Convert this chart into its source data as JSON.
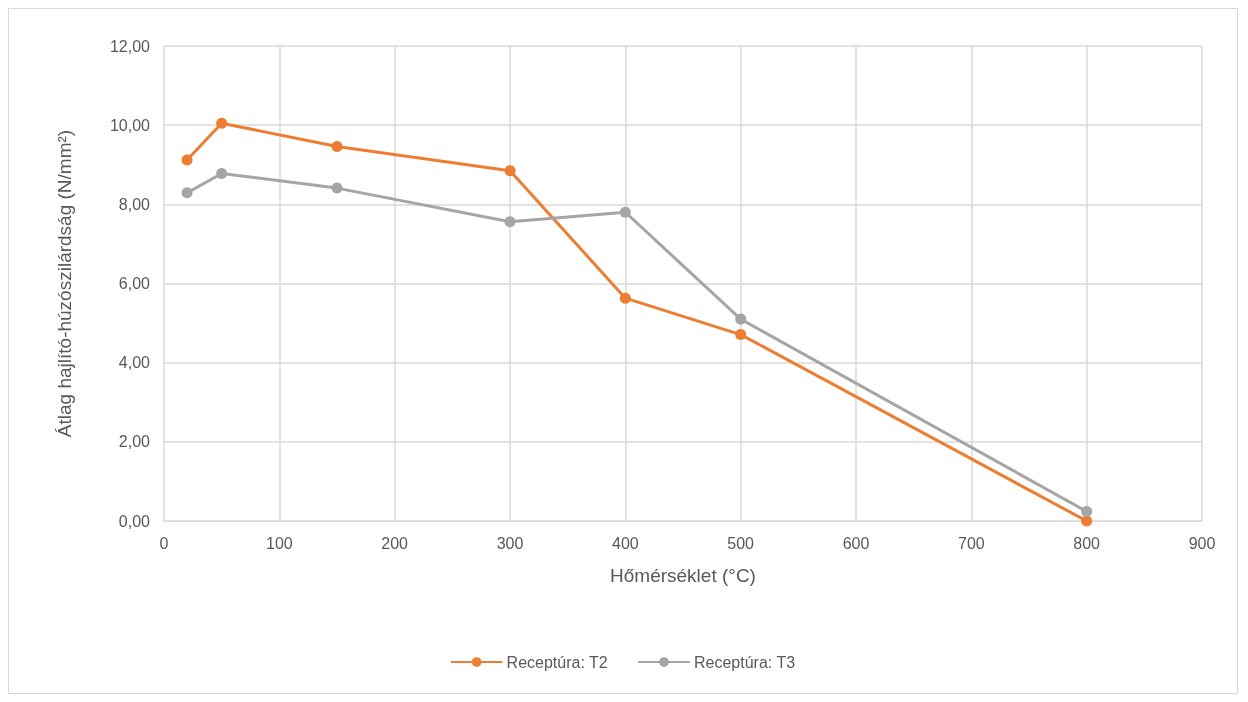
{
  "chart_data": {
    "type": "line",
    "xlabel": "Hőmérséklet (°C)",
    "ylabel": "Átlag hajlító-húzószilárdság (N/mm²)",
    "xlim": [
      0,
      900
    ],
    "xticks": [
      0,
      100,
      200,
      300,
      400,
      500,
      600,
      700,
      800,
      900
    ],
    "ylim": [
      0,
      12
    ],
    "yticks": [
      {
        "value": 0,
        "label": "0,00"
      },
      {
        "value": 2,
        "label": "2,00"
      },
      {
        "value": 4,
        "label": "4,00"
      },
      {
        "value": 6,
        "label": "6,00"
      },
      {
        "value": 8,
        "label": "8,00"
      },
      {
        "value": 10,
        "label": "10,00"
      },
      {
        "value": 12,
        "label": "12,00"
      }
    ],
    "x": [
      20,
      50,
      150,
      300,
      400,
      500,
      800
    ],
    "series": [
      {
        "name": "Receptúra: T2",
        "color": "#ed7d31",
        "values": [
          9.12,
          10.05,
          9.46,
          8.85,
          5.63,
          4.71,
          0
        ]
      },
      {
        "name": "Receptúra: T3",
        "color": "#a5a5a5",
        "values": [
          8.29,
          8.78,
          8.41,
          7.56,
          7.8,
          5.1,
          0.24
        ]
      }
    ],
    "grid": true,
    "legend": "bottom",
    "marker": "circle",
    "line_style": "solid"
  }
}
